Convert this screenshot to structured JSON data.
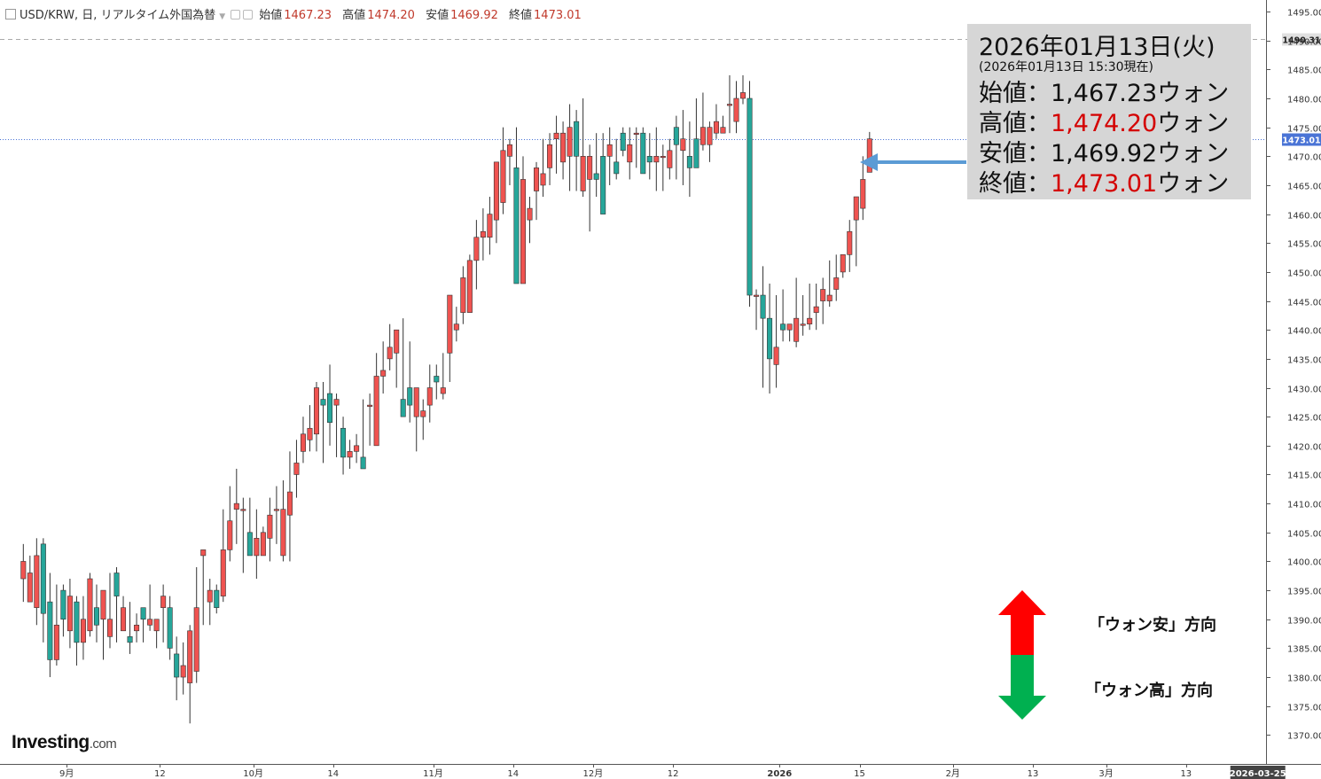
{
  "header": {
    "symbol": "USD/KRW, 日, リアルタイム外国為替",
    "open_label": "始値",
    "open": "1467.23",
    "high_label": "高値",
    "high": "1474.20",
    "low_label": "安値",
    "low": "1469.92",
    "close_label": "終値",
    "close": "1473.01"
  },
  "info_box": {
    "date": "2026年01月13日(火)",
    "timestamp": "(2026年01月13日 15:30現在)",
    "open_label": "始値：",
    "open_value": "1,467.23",
    "open_unit": "ウォン",
    "high_label": "高値：",
    "high_value": "1,474.20",
    "high_unit": "ウォン",
    "low_label": "安値：",
    "low_value": "1,469.92",
    "low_unit": "ウォン",
    "close_label": "終値：",
    "close_value": "1,473.01",
    "close_unit": "ウォン"
  },
  "legend": {
    "up_label": "「ウォン安」方向",
    "down_label": "「ウォン高」方向"
  },
  "logo": {
    "name": "Investing",
    "suffix": ".com"
  },
  "colors": {
    "up": "#ef5350",
    "down": "#26a69a",
    "grid": "#e6e6e6",
    "current_price_tag": "#4a74d6",
    "info_arrow": "#5b9bd5",
    "legend_up": "#ff0000",
    "legend_down": "#00b050"
  },
  "chart_data": {
    "type": "candlestick",
    "y_axis": {
      "range": [
        1365,
        1497
      ],
      "ticks": [
        1370,
        1375,
        1380,
        1385,
        1390,
        1395,
        1400,
        1405,
        1410,
        1415,
        1420,
        1425,
        1430,
        1435,
        1440,
        1445,
        1450,
        1455,
        1460,
        1465,
        1470,
        1475,
        1480,
        1485,
        1490,
        1495
      ],
      "tick_labels": [
        "1370.00",
        "1375.00",
        "1380.00",
        "1385.00",
        "1390.00",
        "1395.00",
        "1400.00",
        "1405.00",
        "1410.00",
        "1415.00",
        "1420.00",
        "1425.00",
        "1430.00",
        "1435.00",
        "1440.00",
        "1445.00",
        "1450.00",
        "1455.00",
        "1460.00",
        "1465.00",
        "1470.00",
        "1475.00",
        "1480.00",
        "1485.00",
        "1490.00",
        "1495.00"
      ],
      "position": "right"
    },
    "x_axis": {
      "labels": [
        "9月",
        "12",
        "10月",
        "14",
        "11月",
        "14",
        "12月",
        "12",
        "2026",
        "15",
        "2月",
        "13",
        "3月",
        "13",
        "2026-03-25"
      ],
      "label_slots": [
        6.5,
        20.5,
        34.5,
        46.5,
        61.5,
        73.5,
        85.5,
        97.5,
        113.5,
        125.5,
        139.5,
        151.5,
        162.5,
        174.5,
        185
      ],
      "bold_labels": [
        "2026"
      ],
      "slot_range": [
        -3.5,
        186.5
      ]
    },
    "reference_lines": [
      {
        "value": 1490.31,
        "label": "1490.31",
        "style": "dashed",
        "tag_color": "#e0e0e0"
      },
      {
        "value": 1473.01,
        "label": "1473.01",
        "style": "dotted",
        "tag_color": "#4a74d6"
      }
    ],
    "candles_ohlc": [
      [
        1397,
        1403,
        1393,
        1400
      ],
      [
        1393,
        1401,
        1394,
        1398
      ],
      [
        1392,
        1404,
        1389,
        1401
      ],
      [
        1403,
        1404,
        1386,
        1391
      ],
      [
        1393,
        1398,
        1380,
        1383
      ],
      [
        1383,
        1396,
        1382,
        1389
      ],
      [
        1395,
        1396,
        1387,
        1390
      ],
      [
        1388,
        1397,
        1385,
        1394
      ],
      [
        1393,
        1394,
        1382,
        1386
      ],
      [
        1386,
        1394,
        1383,
        1390
      ],
      [
        1388,
        1398,
        1387,
        1397
      ],
      [
        1392,
        1396,
        1386,
        1389
      ],
      [
        1390,
        1393,
        1383,
        1395
      ],
      [
        1387,
        1398,
        1385,
        1390
      ],
      [
        1398,
        1399,
        1386,
        1394
      ],
      [
        1388,
        1394,
        1389,
        1392
      ],
      [
        1387,
        1393,
        1384,
        1386
      ],
      [
        1388,
        1391,
        1386,
        1389
      ],
      [
        1392,
        1391,
        1386,
        1390
      ],
      [
        1389,
        1396,
        1388,
        1390
      ],
      [
        1388,
        1390,
        1385,
        1390
      ],
      [
        1392,
        1396,
        1386,
        1394
      ],
      [
        1392,
        1394,
        1383,
        1385
      ],
      [
        1384,
        1387,
        1376,
        1380
      ],
      [
        1380,
        1386,
        1377,
        1382
      ],
      [
        1379,
        1389,
        1372,
        1388
      ],
      [
        1381,
        1399,
        1379,
        1392
      ],
      [
        1401,
        1402,
        1389,
        1402
      ],
      [
        1393,
        1397,
        1389,
        1395
      ],
      [
        1395,
        1396,
        1391,
        1392
      ],
      [
        1394,
        1409,
        1393,
        1402
      ],
      [
        1402,
        1413,
        1400,
        1407
      ],
      [
        1409,
        1416,
        1403,
        1410
      ],
      [
        1409,
        1411,
        1398,
        1409
      ],
      [
        1405,
        1411,
        1402,
        1401
      ],
      [
        1401,
        1409,
        1397,
        1404
      ],
      [
        1401,
        1406,
        1401,
        1405
      ],
      [
        1404,
        1411,
        1400,
        1408
      ],
      [
        1409,
        1413,
        1403,
        1409
      ],
      [
        1401,
        1414,
        1400,
        1409
      ],
      [
        1408,
        1419,
        1400,
        1412
      ],
      [
        1415,
        1421,
        1411,
        1417
      ],
      [
        1419,
        1425,
        1417,
        1422
      ],
      [
        1421,
        1427,
        1419,
        1423
      ],
      [
        1422,
        1431,
        1419,
        1430
      ],
      [
        1428,
        1431,
        1417,
        1427
      ],
      [
        1429,
        1434,
        1420,
        1424
      ],
      [
        1427,
        1429,
        1418,
        1428
      ],
      [
        1423,
        1425,
        1415,
        1418
      ],
      [
        1418,
        1421,
        1416,
        1419
      ],
      [
        1419,
        1422,
        1417,
        1420
      ],
      [
        1418,
        1428,
        1417,
        1416
      ],
      [
        1427,
        1429,
        1420,
        1427
      ],
      [
        1420,
        1436,
        1420,
        1432
      ],
      [
        1432,
        1438,
        1429,
        1433
      ],
      [
        1435,
        1441,
        1433,
        1437
      ],
      [
        1436,
        1439,
        1430,
        1440
      ],
      [
        1428,
        1442,
        1427,
        1425
      ],
      [
        1430,
        1438,
        1424,
        1427
      ],
      [
        1425,
        1429,
        1419,
        1430
      ],
      [
        1425,
        1428,
        1421,
        1426
      ],
      [
        1427,
        1434,
        1424,
        1430
      ],
      [
        1432,
        1434,
        1428,
        1431
      ],
      [
        1429,
        1436,
        1428,
        1430
      ],
      [
        1436,
        1444,
        1431,
        1446
      ],
      [
        1440,
        1444,
        1438,
        1441
      ],
      [
        1443,
        1451,
        1441,
        1449
      ],
      [
        1443,
        1453,
        1443,
        1452
      ],
      [
        1452,
        1459,
        1447,
        1456
      ],
      [
        1456,
        1461,
        1452,
        1457
      ],
      [
        1456,
        1463,
        1453,
        1460
      ],
      [
        1459,
        1467,
        1455,
        1469
      ],
      [
        1462,
        1475,
        1460,
        1471
      ],
      [
        1470,
        1473,
        1465,
        1472
      ],
      [
        1468,
        1475,
        1448,
        1448
      ],
      [
        1448,
        1470,
        1448,
        1466
      ],
      [
        1459,
        1463,
        1455,
        1461
      ],
      [
        1464,
        1469,
        1459,
        1468
      ],
      [
        1465,
        1473,
        1463,
        1467
      ],
      [
        1468,
        1474,
        1465,
        1472
      ],
      [
        1473,
        1477,
        1467,
        1474
      ],
      [
        1469,
        1476,
        1466,
        1474
      ],
      [
        1470,
        1479,
        1464,
        1475
      ],
      [
        1476,
        1478,
        1464,
        1470
      ],
      [
        1464,
        1480,
        1463,
        1470
      ],
      [
        1466,
        1472,
        1457,
        1470
      ],
      [
        1467,
        1474,
        1463,
        1466
      ],
      [
        1470,
        1474,
        1463,
        1460
      ],
      [
        1470,
        1475,
        1465,
        1472
      ],
      [
        1469,
        1473,
        1466,
        1467
      ],
      [
        1474,
        1475,
        1470,
        1471
      ],
      [
        1469,
        1475,
        1466,
        1472
      ],
      [
        1474,
        1475,
        1468,
        1474
      ],
      [
        1474,
        1475,
        1467,
        1467
      ],
      [
        1470,
        1474,
        1466,
        1469
      ],
      [
        1469,
        1475,
        1464,
        1470
      ],
      [
        1470,
        1472,
        1464,
        1470
      ],
      [
        1468,
        1473,
        1466,
        1471
      ],
      [
        1475,
        1477,
        1466,
        1472
      ],
      [
        1471,
        1478,
        1465,
        1473
      ],
      [
        1470,
        1476,
        1463,
        1468
      ],
      [
        1473,
        1480,
        1470,
        1468
      ],
      [
        1472,
        1481,
        1471,
        1475
      ],
      [
        1472,
        1476,
        1469,
        1475
      ],
      [
        1474,
        1479,
        1473,
        1476
      ],
      [
        1474,
        1477,
        1474,
        1475
      ],
      [
        1479,
        1484,
        1474,
        1479
      ],
      [
        1476,
        1483,
        1474,
        1480
      ],
      [
        1480,
        1484,
        1479,
        1481
      ],
      [
        1480,
        1483,
        1444,
        1446
      ],
      [
        1446,
        1447,
        1440,
        1446
      ],
      [
        1446,
        1451,
        1430,
        1442
      ],
      [
        1442,
        1448,
        1429,
        1435
      ],
      [
        1434,
        1446,
        1430,
        1437
      ],
      [
        1441,
        1447,
        1438,
        1440
      ],
      [
        1440,
        1441,
        1438,
        1441
      ],
      [
        1438,
        1449,
        1437,
        1442
      ],
      [
        1441,
        1446,
        1439,
        1441
      ],
      [
        1441,
        1448,
        1440,
        1442
      ],
      [
        1443,
        1448,
        1440,
        1444
      ],
      [
        1445,
        1449,
        1441,
        1447
      ],
      [
        1445,
        1452,
        1444,
        1446
      ],
      [
        1447,
        1453,
        1445,
        1449
      ],
      [
        1450,
        1453,
        1449,
        1453
      ],
      [
        1453,
        1459,
        1450,
        1457
      ],
      [
        1459,
        1461,
        1451,
        1463
      ],
      [
        1461,
        1470,
        1459,
        1466
      ],
      [
        1467.23,
        1474.2,
        1469.92,
        1473.01
      ]
    ]
  }
}
